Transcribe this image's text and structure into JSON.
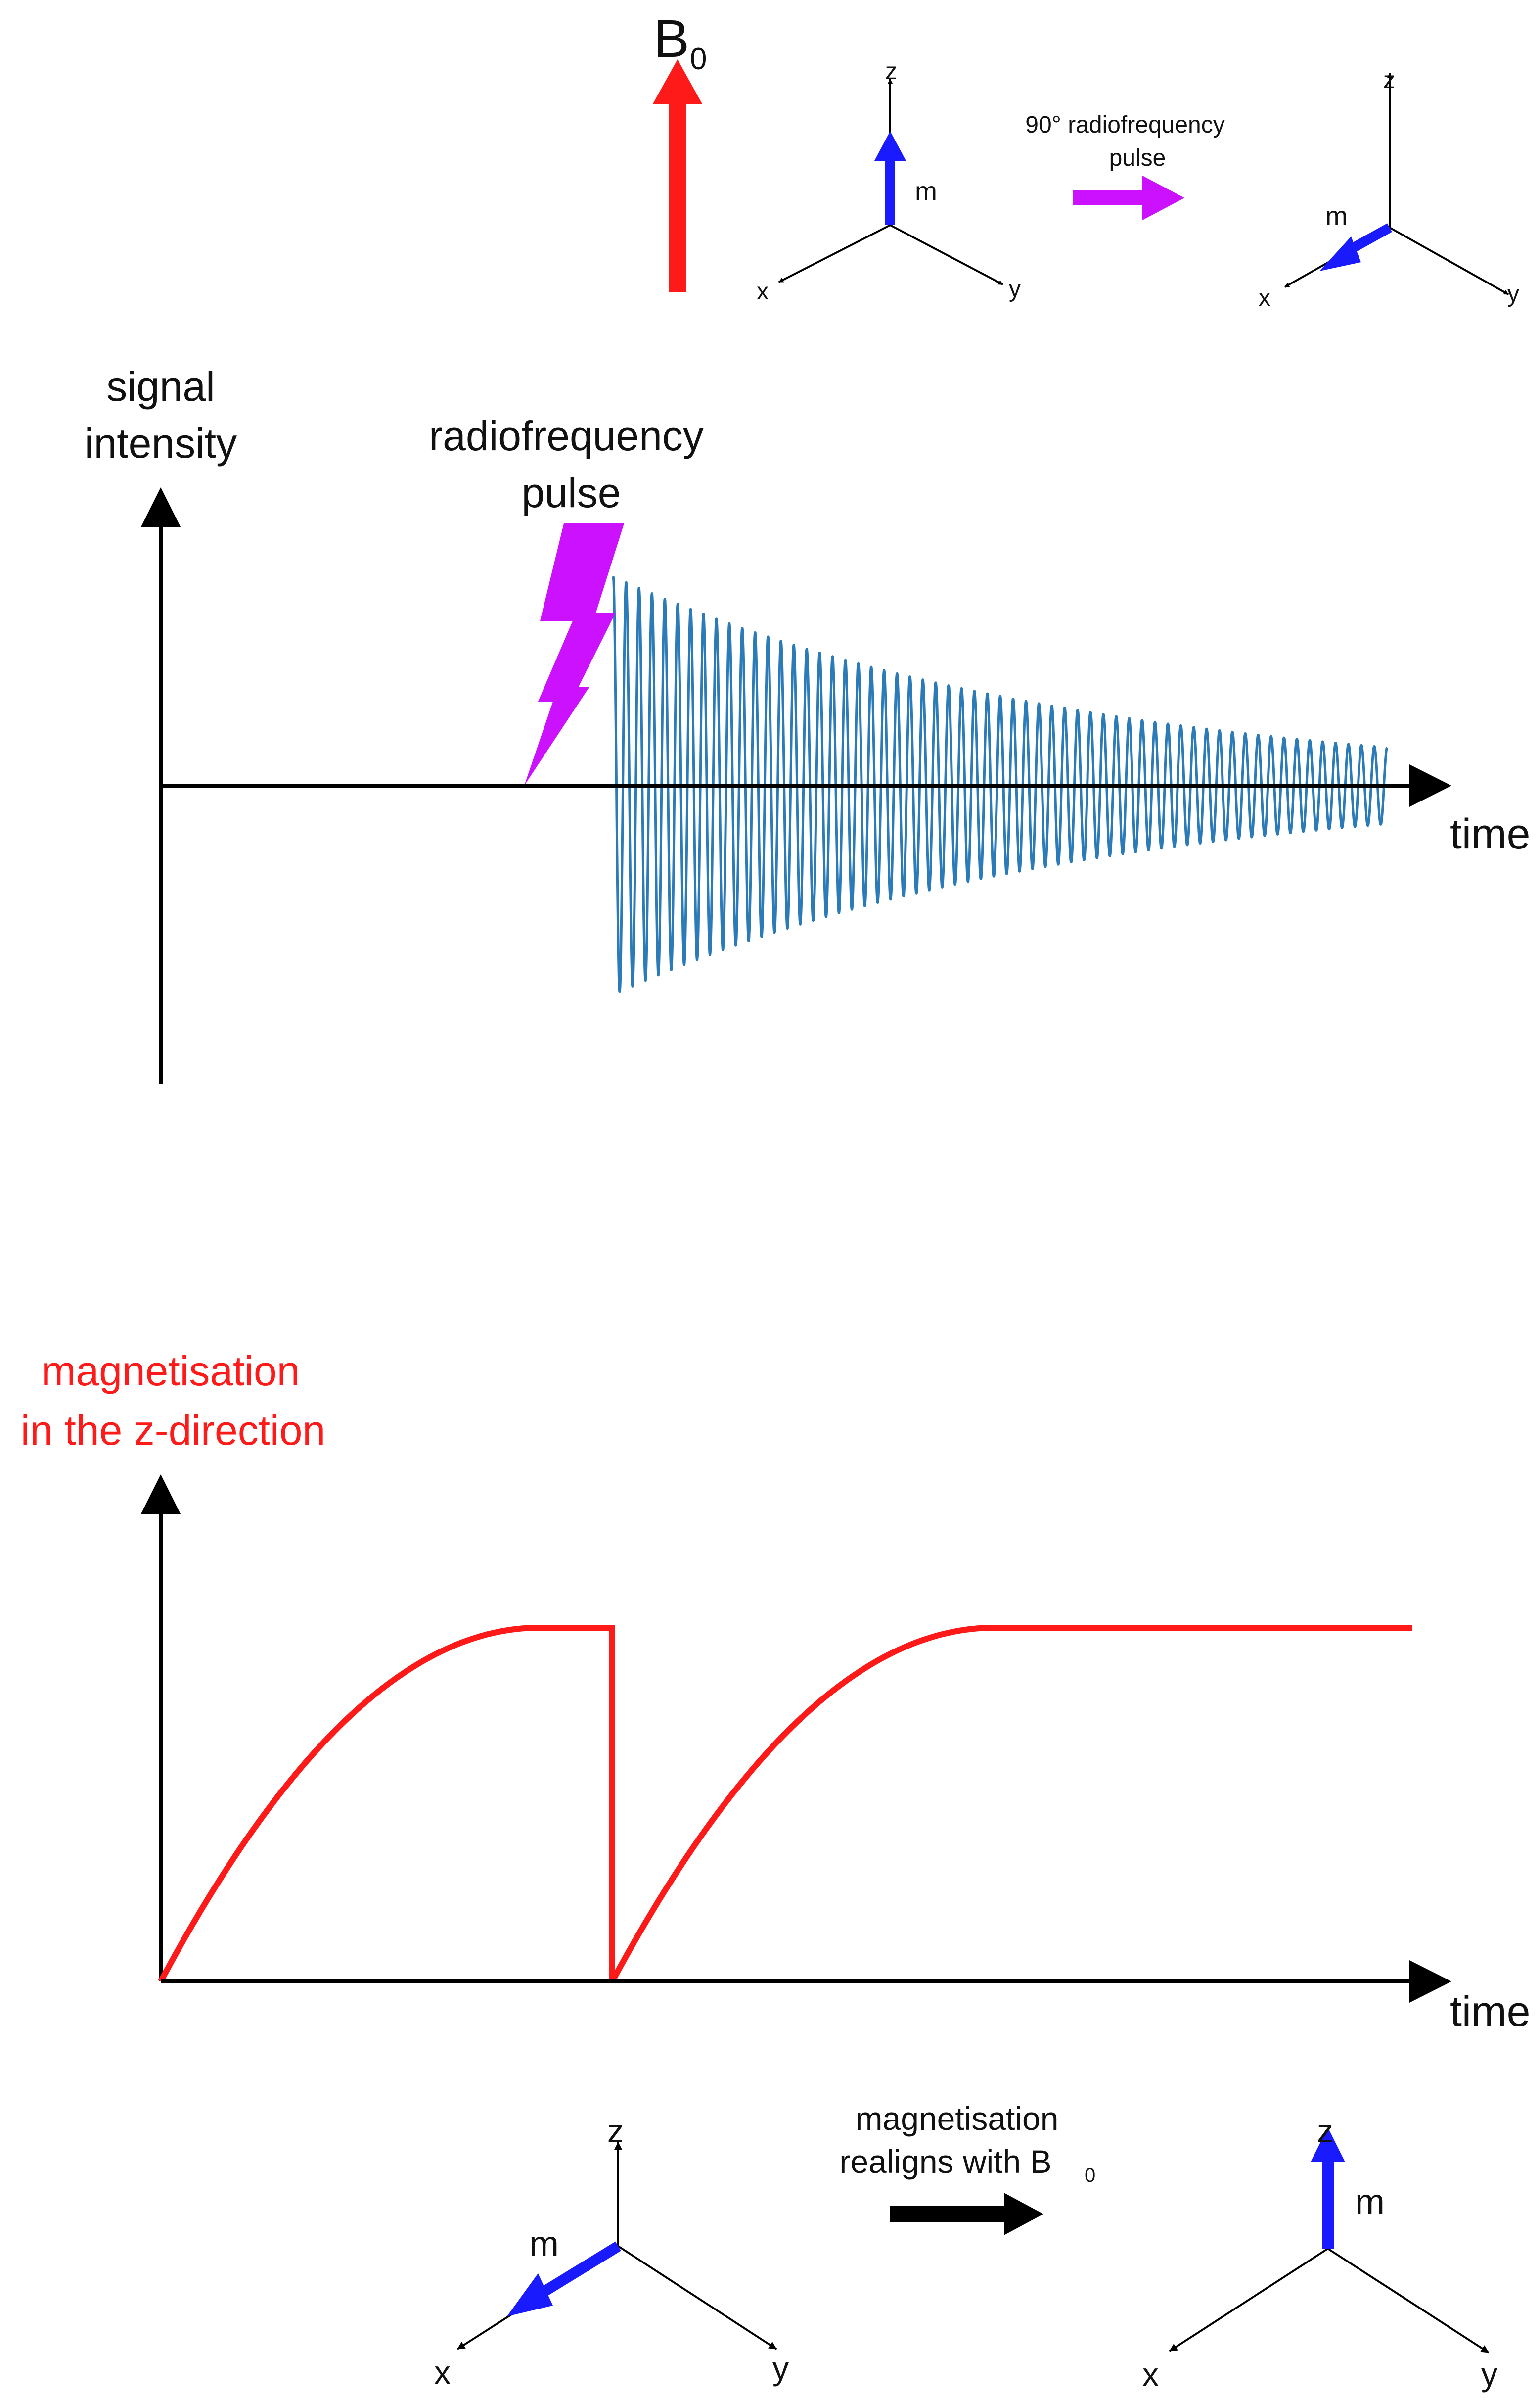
{
  "colors": {
    "b0_arrow": "#ff1a1a",
    "moment": "#1a1aff",
    "rf_pulse": "#cc11ff",
    "signal_wave": "#2b7bb9",
    "magnetisation_curve": "#ff1a1a",
    "axes": "#000000",
    "text": "#111111",
    "red_label": "#ff1a1a"
  },
  "top_panel": {
    "b0_label": "B",
    "b0_subscript": "0",
    "frame_before": {
      "z": "z",
      "x": "x",
      "y": "y",
      "m": "m"
    },
    "pulse_label_line1": "90° radiofrequency",
    "pulse_label_line2": "pulse",
    "frame_after": {
      "z": "z",
      "x": "x",
      "y": "y",
      "m": "m"
    }
  },
  "signal_panel": {
    "ylabel_line1": "signal",
    "ylabel_line2": "intensity",
    "pulse_label_line1": "radiofrequency",
    "pulse_label_line2": "pulse",
    "xlabel": "time"
  },
  "magnetisation_panel": {
    "ylabel_line1": "magnetisation",
    "ylabel_line2": "in the z-direction",
    "xlabel": "time"
  },
  "bottom_panel": {
    "frame_before": {
      "z": "z",
      "x": "x",
      "y": "y",
      "m": "m"
    },
    "realign_label_line1": "magnetisation",
    "realign_label_line2": "realigns with B",
    "realign_label_subscript": "0",
    "frame_after": {
      "z": "z",
      "x": "x",
      "y": "y",
      "m": "m"
    }
  }
}
